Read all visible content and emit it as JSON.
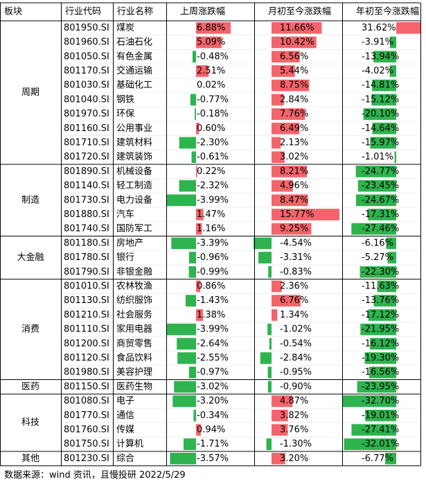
{
  "header": [
    "板块",
    "行业代码",
    "行业名称",
    "上周涨跌幅",
    "月初至今涨跌幅",
    "年初至今涨跌幅"
  ],
  "groups": [
    {
      "name": "周期",
      "rows": [
        {
          "code": "801950.SI",
          "name": "煤炭",
          "values": [
            6.88,
            11.66,
            31.62
          ],
          "value_labels": [
            "6.88%",
            "11.66%",
            "31.62%"
          ]
        },
        {
          "code": "801960.SI",
          "name": "石油石化",
          "values": [
            5.09,
            10.42,
            -3.91
          ],
          "value_labels": [
            "5.09%",
            "10.42%",
            "-3.91%"
          ]
        },
        {
          "code": "801050.SI",
          "name": "有色金属",
          "values": [
            -0.48,
            6.56,
            -13.94
          ],
          "value_labels": [
            "-0.48%",
            "6.56%",
            "-13.94%"
          ]
        },
        {
          "code": "801170.SI",
          "name": "交通运输",
          "values": [
            2.51,
            5.44,
            -4.02
          ],
          "value_labels": [
            "2.51%",
            "5.44%",
            "-4.02%"
          ]
        },
        {
          "code": "801030.SI",
          "name": "基础化工",
          "values": [
            0.02,
            8.75,
            -14.81
          ],
          "value_labels": [
            "0.02%",
            "8.75%",
            "-14.81%"
          ]
        },
        {
          "code": "801040.SI",
          "name": "钢铁",
          "values": [
            -0.77,
            2.84,
            -15.12
          ],
          "value_labels": [
            "-0.77%",
            "2.84%",
            "-15.12%"
          ]
        },
        {
          "code": "801970.SI",
          "name": "环保",
          "values": [
            -0.18,
            7.76,
            -20.1
          ],
          "value_labels": [
            "-0.18%",
            "7.76%",
            "-20.10%"
          ]
        },
        {
          "code": "801160.SI",
          "name": "公用事业",
          "values": [
            0.6,
            6.49,
            -14.64
          ],
          "value_labels": [
            "0.60%",
            "6.49%",
            "-14.64%"
          ]
        },
        {
          "code": "801710.SI",
          "name": "建筑材料",
          "values": [
            -2.3,
            2.13,
            -15.97
          ],
          "value_labels": [
            "-2.30%",
            "2.13%",
            "-15.97%"
          ]
        },
        {
          "code": "801720.SI",
          "name": "建筑装饰",
          "values": [
            -0.61,
            3.02,
            -1.01
          ],
          "value_labels": [
            "-0.61%",
            "3.02%",
            "-1.01%"
          ]
        }
      ]
    },
    {
      "name": "制造",
      "rows": [
        {
          "code": "801890.SI",
          "name": "机械设备",
          "values": [
            0.22,
            8.21,
            -24.77
          ],
          "value_labels": [
            "0.22%",
            "8.21%",
            "-24.77%"
          ]
        },
        {
          "code": "801140.SI",
          "name": "轻工制造",
          "values": [
            -2.32,
            4.96,
            -23.45
          ],
          "value_labels": [
            "-2.32%",
            "4.96%",
            "-23.45%"
          ]
        },
        {
          "code": "801730.SI",
          "name": "电力设备",
          "values": [
            -3.99,
            8.47,
            -24.67
          ],
          "value_labels": [
            "-3.99%",
            "8.47%",
            "-24.67%"
          ]
        },
        {
          "code": "801880.SI",
          "name": "汽车",
          "values": [
            1.47,
            15.77,
            -17.31
          ],
          "value_labels": [
            "1.47%",
            "15.77%",
            "-17.31%"
          ]
        },
        {
          "code": "801740.SI",
          "name": "国防军工",
          "values": [
            1.16,
            9.25,
            -27.46
          ],
          "value_labels": [
            "1.16%",
            "9.25%",
            "-27.46%"
          ]
        }
      ]
    },
    {
      "name": "大金融",
      "rows": [
        {
          "code": "801180.SI",
          "name": "房地产",
          "values": [
            -3.39,
            -4.54,
            -6.16
          ],
          "value_labels": [
            "-3.39%",
            "-4.54%",
            "-6.16%"
          ]
        },
        {
          "code": "801780.SI",
          "name": "银行",
          "values": [
            -0.96,
            -3.31,
            -5.27
          ],
          "value_labels": [
            "-0.96%",
            "-3.31%",
            "-5.27%"
          ]
        },
        {
          "code": "801790.SI",
          "name": "非银金融",
          "values": [
            -0.99,
            -0.83,
            -22.3
          ],
          "value_labels": [
            "-0.99%",
            "-0.83%",
            "-22.30%"
          ]
        }
      ]
    },
    {
      "name": "消费",
      "rows": [
        {
          "code": "801010.SI",
          "name": "农林牧渔",
          "values": [
            0.86,
            2.36,
            -11.63
          ],
          "value_labels": [
            "0.86%",
            "2.36%",
            "-11.63%"
          ]
        },
        {
          "code": "801130.SI",
          "name": "纺织服饰",
          "values": [
            -1.43,
            6.76,
            -13.76
          ],
          "value_labels": [
            "-1.43%",
            "6.76%",
            "-13.76%"
          ]
        },
        {
          "code": "801210.SI",
          "name": "社会服务",
          "values": [
            1.38,
            1.34,
            -17.12
          ],
          "value_labels": [
            "1.38%",
            "1.34%",
            "-17.12%"
          ]
        },
        {
          "code": "801110.SI",
          "name": "家用电器",
          "values": [
            -3.99,
            -1.02,
            -21.95
          ],
          "value_labels": [
            "-3.99%",
            "-1.02%",
            "-21.95%"
          ]
        },
        {
          "code": "801200.SI",
          "name": "商贸零售",
          "values": [
            -2.64,
            -0.54,
            -16.12
          ],
          "value_labels": [
            "-2.64%",
            "-0.54%",
            "-16.12%"
          ]
        },
        {
          "code": "801120.SI",
          "name": "食品饮料",
          "values": [
            -2.55,
            -2.84,
            -19.3
          ],
          "value_labels": [
            "-2.55%",
            "-2.84%",
            "-19.30%"
          ]
        },
        {
          "code": "801980.SI",
          "name": "美容护理",
          "values": [
            -0.97,
            -0.95,
            -16.56
          ],
          "value_labels": [
            "-0.97%",
            "-0.95%",
            "-16.56%"
          ]
        }
      ]
    },
    {
      "name": "医药",
      "rows": [
        {
          "code": "801150.SI",
          "name": "医药生物",
          "values": [
            -3.02,
            -0.9,
            -23.95
          ],
          "value_labels": [
            "-3.02%",
            "-0.90%",
            "-23.95%"
          ]
        }
      ]
    },
    {
      "name": "科技",
      "rows": [
        {
          "code": "801080.SI",
          "name": "电子",
          "values": [
            -3.2,
            4.87,
            -32.7
          ],
          "value_labels": [
            "-3.20%",
            "4.87%",
            "-32.70%"
          ]
        },
        {
          "code": "801770.SI",
          "name": "通信",
          "values": [
            -0.34,
            3.82,
            -19.01
          ],
          "value_labels": [
            "-0.34%",
            "3.82%",
            "-19.01%"
          ]
        },
        {
          "code": "801760.SI",
          "name": "传媒",
          "values": [
            0.94,
            3.76,
            -27.41
          ],
          "value_labels": [
            "0.94%",
            "3.76%",
            "-27.41%"
          ]
        },
        {
          "code": "801750.SI",
          "name": "计算机",
          "values": [
            -1.71,
            -1.3,
            -32.01
          ],
          "value_labels": [
            "-1.71%",
            "-1.30%",
            "-32.01%"
          ]
        }
      ]
    },
    {
      "name": "其他",
      "rows": [
        {
          "code": "801230.SI",
          "name": "综合",
          "values": [
            -3.57,
            3.2,
            -6.77
          ],
          "value_labels": [
            "-3.57%",
            "3.20%",
            "-6.77%"
          ]
        }
      ]
    }
  ],
  "source": "数据来源：wind 资讯，且慢投研 2022/5/29"
}
